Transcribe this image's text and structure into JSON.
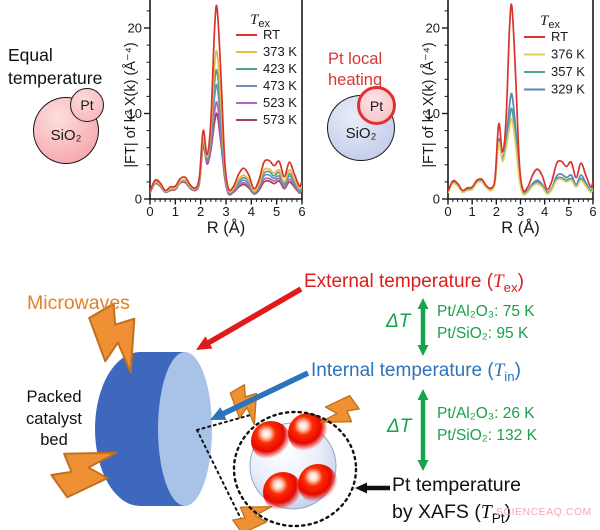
{
  "watermark": "SCIENCEAQ.COM",
  "top": {
    "equal_label": {
      "line1": "Equal",
      "line2": "temperature"
    },
    "equal_circle": {
      "support": "SiO₂",
      "particle": "Pt"
    },
    "heating_label": {
      "line1": "Pt local",
      "line2": "heating"
    },
    "heating_circle": {
      "support": "SiO₂",
      "particle": "Pt"
    }
  },
  "chart_data": [
    {
      "type": "line",
      "title": "",
      "xlabel": "R (Å)",
      "ylabel": "|FT| of k³ X(k) (Å⁻⁴)",
      "xlim": [
        0,
        6
      ],
      "ylim": [
        0,
        23.3
      ],
      "xticks": [
        0,
        1,
        2,
        3,
        4,
        5,
        6
      ],
      "yticks": [
        0,
        10,
        20
      ],
      "grid": false,
      "legend_position": "upper-right-inside",
      "legend_title": {
        "main": "T",
        "sub": "ex"
      },
      "x": [
        0,
        0.2,
        0.4,
        0.6,
        0.8,
        1.0,
        1.2,
        1.4,
        1.6,
        1.8,
        1.95,
        2.1,
        2.25,
        2.4,
        2.55,
        2.65,
        2.8,
        2.95,
        3.1,
        3.3,
        3.5,
        3.7,
        3.9,
        4.1,
        4.3,
        4.5,
        4.7,
        4.9,
        5.1,
        5.3,
        5.5,
        5.7,
        5.9,
        6.0
      ],
      "series": [
        {
          "name": "RT",
          "color": "#d8332d",
          "values": [
            0.9,
            2.2,
            1.9,
            1.0,
            1.4,
            1.5,
            2.4,
            2.5,
            1.6,
            1.3,
            2.6,
            8.0,
            5.2,
            9.0,
            20.0,
            22.3,
            14.5,
            4.5,
            1.2,
            1.5,
            2.9,
            3.6,
            2.8,
            1.2,
            2.2,
            4.3,
            4.5,
            3.9,
            4.4,
            2.6,
            4.3,
            2.9,
            1.5,
            2.1
          ]
        },
        {
          "name": "373 K",
          "color": "#e9b94b",
          "values": [
            0.8,
            2.0,
            1.7,
            0.9,
            1.2,
            1.3,
            2.1,
            2.2,
            1.4,
            1.2,
            2.3,
            7.0,
            4.9,
            8.0,
            15.5,
            17.1,
            11.3,
            3.8,
            1.0,
            1.2,
            2.3,
            2.8,
            2.2,
            0.9,
            1.7,
            3.4,
            3.5,
            3.0,
            3.4,
            2.0,
            3.4,
            2.3,
            1.2,
            1.6
          ]
        },
        {
          "name": "423 K",
          "color": "#4fa28c",
          "values": [
            0.8,
            1.9,
            1.6,
            0.9,
            1.1,
            1.3,
            2.0,
            2.1,
            1.4,
            1.1,
            2.2,
            6.8,
            4.7,
            7.4,
            13.6,
            14.9,
            9.9,
            3.4,
            0.9,
            1.1,
            2.0,
            2.5,
            2.0,
            0.8,
            1.5,
            3.0,
            3.2,
            2.7,
            3.1,
            1.8,
            3.0,
            2.0,
            1.1,
            1.5
          ]
        },
        {
          "name": "473 K",
          "color": "#6e8fc3",
          "values": [
            0.7,
            1.9,
            1.6,
            0.8,
            1.1,
            1.2,
            2.0,
            2.1,
            1.3,
            1.1,
            2.1,
            6.6,
            4.5,
            6.8,
            12.0,
            13.2,
            8.8,
            3.1,
            0.8,
            1.0,
            1.8,
            2.2,
            1.7,
            0.7,
            1.4,
            2.7,
            2.8,
            2.4,
            2.7,
            1.6,
            2.7,
            1.8,
            0.9,
            1.3
          ]
        },
        {
          "name": "523 K",
          "color": "#b264c0",
          "values": [
            0.7,
            1.8,
            1.5,
            0.8,
            1.0,
            1.2,
            1.9,
            2.0,
            1.3,
            1.0,
            2.0,
            6.4,
            4.3,
            6.2,
            10.2,
            11.2,
            7.5,
            2.8,
            0.7,
            0.9,
            1.6,
            1.9,
            1.5,
            0.7,
            1.2,
            2.3,
            2.4,
            2.1,
            2.4,
            1.4,
            2.3,
            1.6,
            0.8,
            1.1
          ]
        },
        {
          "name": "573 K",
          "color": "#a04458",
          "values": [
            0.7,
            1.8,
            1.5,
            0.8,
            1.0,
            1.1,
            1.9,
            1.9,
            1.2,
            1.0,
            1.9,
            6.2,
            4.1,
            5.7,
            9.0,
            9.9,
            6.6,
            2.5,
            0.6,
            0.8,
            1.4,
            1.7,
            1.3,
            0.6,
            1.0,
            2.0,
            2.1,
            1.8,
            2.1,
            1.2,
            2.0,
            1.4,
            0.7,
            1.0
          ]
        }
      ]
    },
    {
      "type": "line",
      "title": "",
      "xlabel": "R (Å)",
      "ylabel": "|FT| of k³ X(k) (Å⁻⁴)",
      "xlim": [
        0,
        6
      ],
      "ylim": [
        0,
        23.3
      ],
      "xticks": [
        0,
        1,
        2,
        3,
        4,
        5,
        6
      ],
      "yticks": [
        0,
        10,
        20
      ],
      "grid": false,
      "legend_position": "upper-right-inside",
      "legend_title": {
        "main": "T",
        "sub": "ex"
      },
      "x": [
        0,
        0.2,
        0.4,
        0.6,
        0.8,
        1.0,
        1.2,
        1.4,
        1.6,
        1.8,
        1.95,
        2.1,
        2.25,
        2.4,
        2.55,
        2.65,
        2.8,
        2.95,
        3.1,
        3.3,
        3.5,
        3.7,
        3.9,
        4.1,
        4.3,
        4.5,
        4.7,
        4.9,
        5.1,
        5.3,
        5.5,
        5.7,
        5.9,
        6.0
      ],
      "series": [
        {
          "name": "RT",
          "color": "#d8332d",
          "values": [
            0.9,
            2.1,
            1.8,
            1.0,
            1.3,
            1.4,
            2.2,
            2.3,
            1.5,
            1.3,
            2.5,
            8.8,
            5.5,
            9.2,
            20.2,
            22.4,
            14.2,
            4.3,
            1.1,
            1.4,
            2.8,
            3.5,
            2.7,
            1.1,
            2.1,
            4.2,
            4.4,
            3.8,
            4.3,
            2.5,
            4.2,
            2.8,
            1.4,
            2.0
          ]
        },
        {
          "name": "376 K",
          "color": "#e2cc5e",
          "values": [
            0.7,
            1.8,
            1.5,
            0.8,
            1.0,
            1.1,
            1.9,
            2.0,
            1.3,
            1.0,
            2.0,
            6.6,
            4.4,
            5.9,
            8.4,
            9.3,
            6.3,
            2.3,
            0.6,
            0.8,
            1.5,
            1.8,
            1.4,
            0.6,
            1.1,
            2.2,
            2.3,
            2.0,
            2.2,
            1.4,
            2.2,
            1.5,
            0.8,
            1.1
          ]
        },
        {
          "name": "357 K",
          "color": "#4fa28c",
          "values": [
            0.8,
            1.9,
            1.6,
            0.8,
            1.1,
            1.2,
            2.0,
            2.0,
            1.3,
            1.1,
            2.1,
            6.8,
            4.5,
            6.3,
            9.5,
            10.5,
            7.1,
            2.6,
            0.7,
            0.9,
            1.6,
            2.0,
            1.5,
            0.7,
            1.2,
            2.4,
            2.5,
            2.2,
            2.4,
            1.5,
            2.4,
            1.7,
            0.9,
            1.2
          ]
        },
        {
          "name": "329 K",
          "color": "#5d82c2",
          "values": [
            0.8,
            1.9,
            1.6,
            0.9,
            1.1,
            1.2,
            2.0,
            2.1,
            1.4,
            1.1,
            2.2,
            7.0,
            4.7,
            6.8,
            11.0,
            12.2,
            8.2,
            2.9,
            0.8,
            1.0,
            1.8,
            2.2,
            1.7,
            0.8,
            1.3,
            2.7,
            2.9,
            2.5,
            2.8,
            1.7,
            2.8,
            1.9,
            1.0,
            1.4
          ]
        }
      ]
    }
  ],
  "bottom": {
    "microwaves": "Microwaves",
    "packed_bed": {
      "line1": "Packed",
      "line2": "catalyst",
      "line3": "bed"
    },
    "external": {
      "pre": "External temperature (",
      "T": "T",
      "sub": "ex",
      "post": ")"
    },
    "internal": {
      "pre": "Internal temperature (",
      "T": "T",
      "sub": "in",
      "post": ")"
    },
    "pt_temp": {
      "line1": "Pt temperature",
      "pre2": "by XAFS (",
      "T": "T",
      "sub": "Pt",
      "post": ")"
    },
    "delta1": {
      "symbol": "ΔT",
      "rows": [
        "Pt/Al₂O₃: 75 K",
        "Pt/SiO₂: 95 K"
      ]
    },
    "delta2": {
      "symbol": "ΔT",
      "rows": [
        "Pt/Al₂O₃: 26 K",
        "Pt/SiO₂: 132 K"
      ]
    },
    "colors": {
      "green": "#17a24b",
      "red": "#e11b1b",
      "blue": "#2c73bb",
      "orange": "#e2812a",
      "cylinder_body": "#3d68bd",
      "cylinder_face": "#a9c3e8"
    }
  }
}
